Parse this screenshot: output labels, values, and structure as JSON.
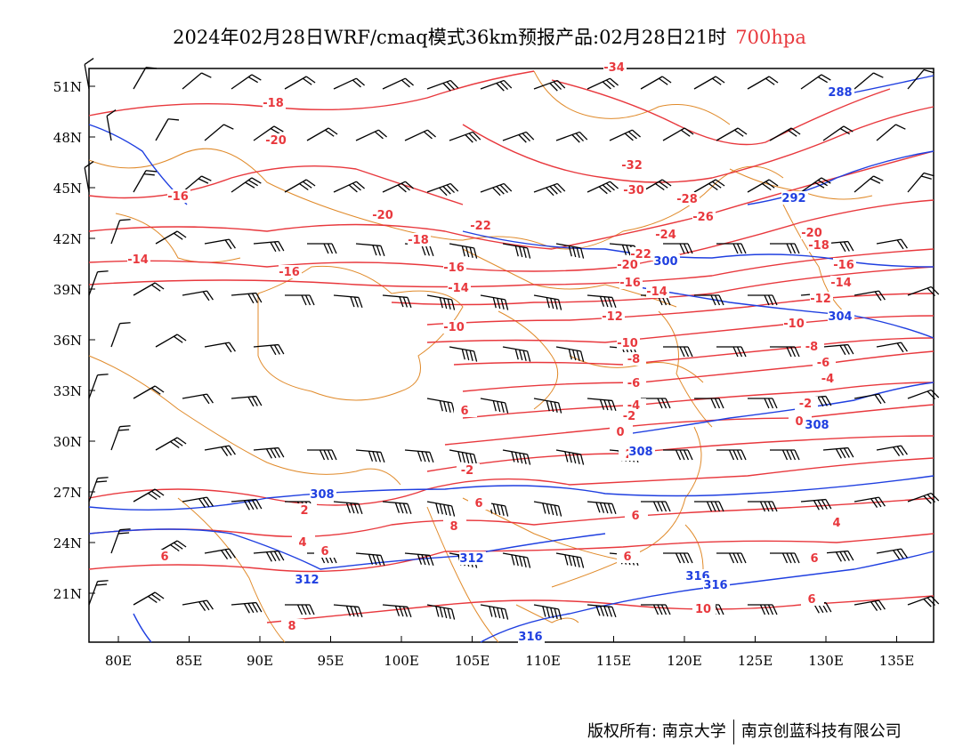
{
  "title": {
    "main": "2024年02月28日WRF/cmaq模式36km预报产品:02月28日21时",
    "level": "700hpa"
  },
  "axes": {
    "lat_labels": [
      "51N",
      "48N",
      "45N",
      "42N",
      "39N",
      "36N",
      "33N",
      "30N",
      "27N",
      "24N",
      "21N"
    ],
    "lon_labels": [
      "80E",
      "85E",
      "90E",
      "95E",
      "100E",
      "105E",
      "110E",
      "115E",
      "120E",
      "125E",
      "130E",
      "135E"
    ]
  },
  "temperature_labels": [
    "-34",
    "-32",
    "-30",
    "-28",
    "-26",
    "-24",
    "-22",
    "-20",
    "-18",
    "-16",
    "-14",
    "-12",
    "-10",
    "-8",
    "-6",
    "-4",
    "-2",
    "0",
    "2",
    "4",
    "6",
    "8",
    "10"
  ],
  "height_labels": [
    "288",
    "292",
    "300",
    "304",
    "308",
    "312",
    "316"
  ],
  "colors": {
    "temperature": "#e8383d",
    "height": "#1f3fe0",
    "border": "#e08a2a",
    "wind": "#000000"
  },
  "footer": {
    "copyright": "版权所有: 南京大学",
    "company": "南京创蓝科技有限公司"
  }
}
